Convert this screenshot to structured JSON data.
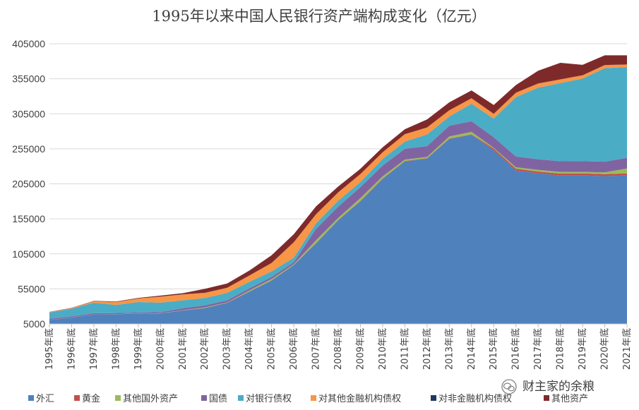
{
  "chart_data": {
    "type": "area",
    "stacked": true,
    "title": "1995年以来中国人民银行资产端构成变化（亿元）",
    "xlabel": "",
    "ylabel": "",
    "ylim": [
      5000,
      405000
    ],
    "yticks": [
      "5000",
      "55000",
      "105000",
      "155000",
      "205000",
      "255000",
      "305000",
      "355000",
      "405000"
    ],
    "ytick_values": [
      5000,
      55000,
      105000,
      155000,
      205000,
      255000,
      305000,
      355000,
      405000
    ],
    "grid": true,
    "legend_position": "bottom",
    "categories": [
      "1995年底",
      "1996年底",
      "1997年底",
      "1998年底",
      "1999年底",
      "2000年底",
      "2001年底",
      "2002年底",
      "2003年底",
      "2004年底",
      "2005年底",
      "2006年底",
      "2007年底",
      "2008年底",
      "2009年底",
      "2010年底",
      "2011年底",
      "2012年底",
      "2013年底",
      "2014年底",
      "2015年底",
      "2016年底",
      "2017年底",
      "2018年底",
      "2019年底",
      "2020年底",
      "2021年底"
    ],
    "series": [
      {
        "name": "外汇",
        "color": "#4f81bd",
        "values": [
          5500,
          9000,
          13500,
          13800,
          14500,
          15000,
          19000,
          22500,
          30000,
          46000,
          62000,
          84000,
          115000,
          148000,
          175000,
          207000,
          232000,
          236000,
          264000,
          270000,
          248000,
          219000,
          215000,
          212000,
          212000,
          211000,
          212000
        ]
      },
      {
        "name": "黄金",
        "color": "#c0504d",
        "values": [
          10,
          10,
          10,
          10,
          10,
          10,
          250,
          340,
          340,
          340,
          340,
          340,
          340,
          340,
          670,
          670,
          670,
          670,
          670,
          670,
          2330,
          2540,
          2540,
          2570,
          2860,
          2860,
          2860
        ]
      },
      {
        "name": "其他国外资产",
        "color": "#9bbb59",
        "values": [
          180,
          150,
          130,
          130,
          180,
          200,
          260,
          730,
          450,
          1400,
          1700,
          900,
          4000,
          3000,
          4000,
          3000,
          2000,
          1800,
          3000,
          3500,
          1000,
          2200,
          2300,
          2400,
          2200,
          2500,
          7000
        ]
      },
      {
        "name": "国债",
        "color": "#8064a2",
        "values": [
          1600,
          1600,
          1600,
          1600,
          1600,
          1600,
          2800,
          2900,
          2900,
          2970,
          2900,
          2900,
          16300,
          16200,
          15700,
          15400,
          15400,
          15300,
          15300,
          15300,
          15300,
          15300,
          15300,
          15300,
          15300,
          15300,
          15300
        ]
      },
      {
        "name": "对银行债权",
        "color": "#4bacc6",
        "values": [
          9000,
          11000,
          15000,
          11500,
          15000,
          13500,
          11300,
          10600,
          10600,
          9400,
          8000,
          6500,
          7900,
          8400,
          7100,
          9500,
          10200,
          16700,
          13100,
          24900,
          26600,
          84700,
          102200,
          111500,
          117900,
          133400,
          129600
        ]
      },
      {
        "name": "对其他金融机构债权",
        "color": "#f79646",
        "values": [
          400,
          900,
          2000,
          4200,
          5000,
          8600,
          8500,
          7200,
          7200,
          8900,
          12000,
          21900,
          12900,
          11900,
          11500,
          9500,
          10600,
          10000,
          8900,
          7800,
          6700,
          6300,
          5900,
          5300,
          4700,
          4500,
          3600
        ]
      },
      {
        "name": "对非金融机构债权",
        "color": "#1f3864",
        "values": [
          100,
          150,
          170,
          180,
          110,
          110,
          200,
          200,
          200,
          130,
          70,
          70,
          60,
          40,
          40,
          30,
          30,
          30,
          30,
          30,
          30,
          80,
          80,
          80,
          80,
          80,
          80
        ]
      },
      {
        "name": "其他资产",
        "color": "#7f2a2a",
        "values": [
          300,
          300,
          400,
          600,
          800,
          1400,
          1500,
          5600,
          6000,
          7000,
          11000,
          11500,
          11200,
          8300,
          7500,
          7000,
          7100,
          11400,
          11400,
          11200,
          12600,
          11000,
          18100,
          23600,
          14900,
          13900,
          13000
        ]
      }
    ]
  },
  "watermark": {
    "icon": "wechat-icon",
    "text": "财主家的余粮"
  }
}
